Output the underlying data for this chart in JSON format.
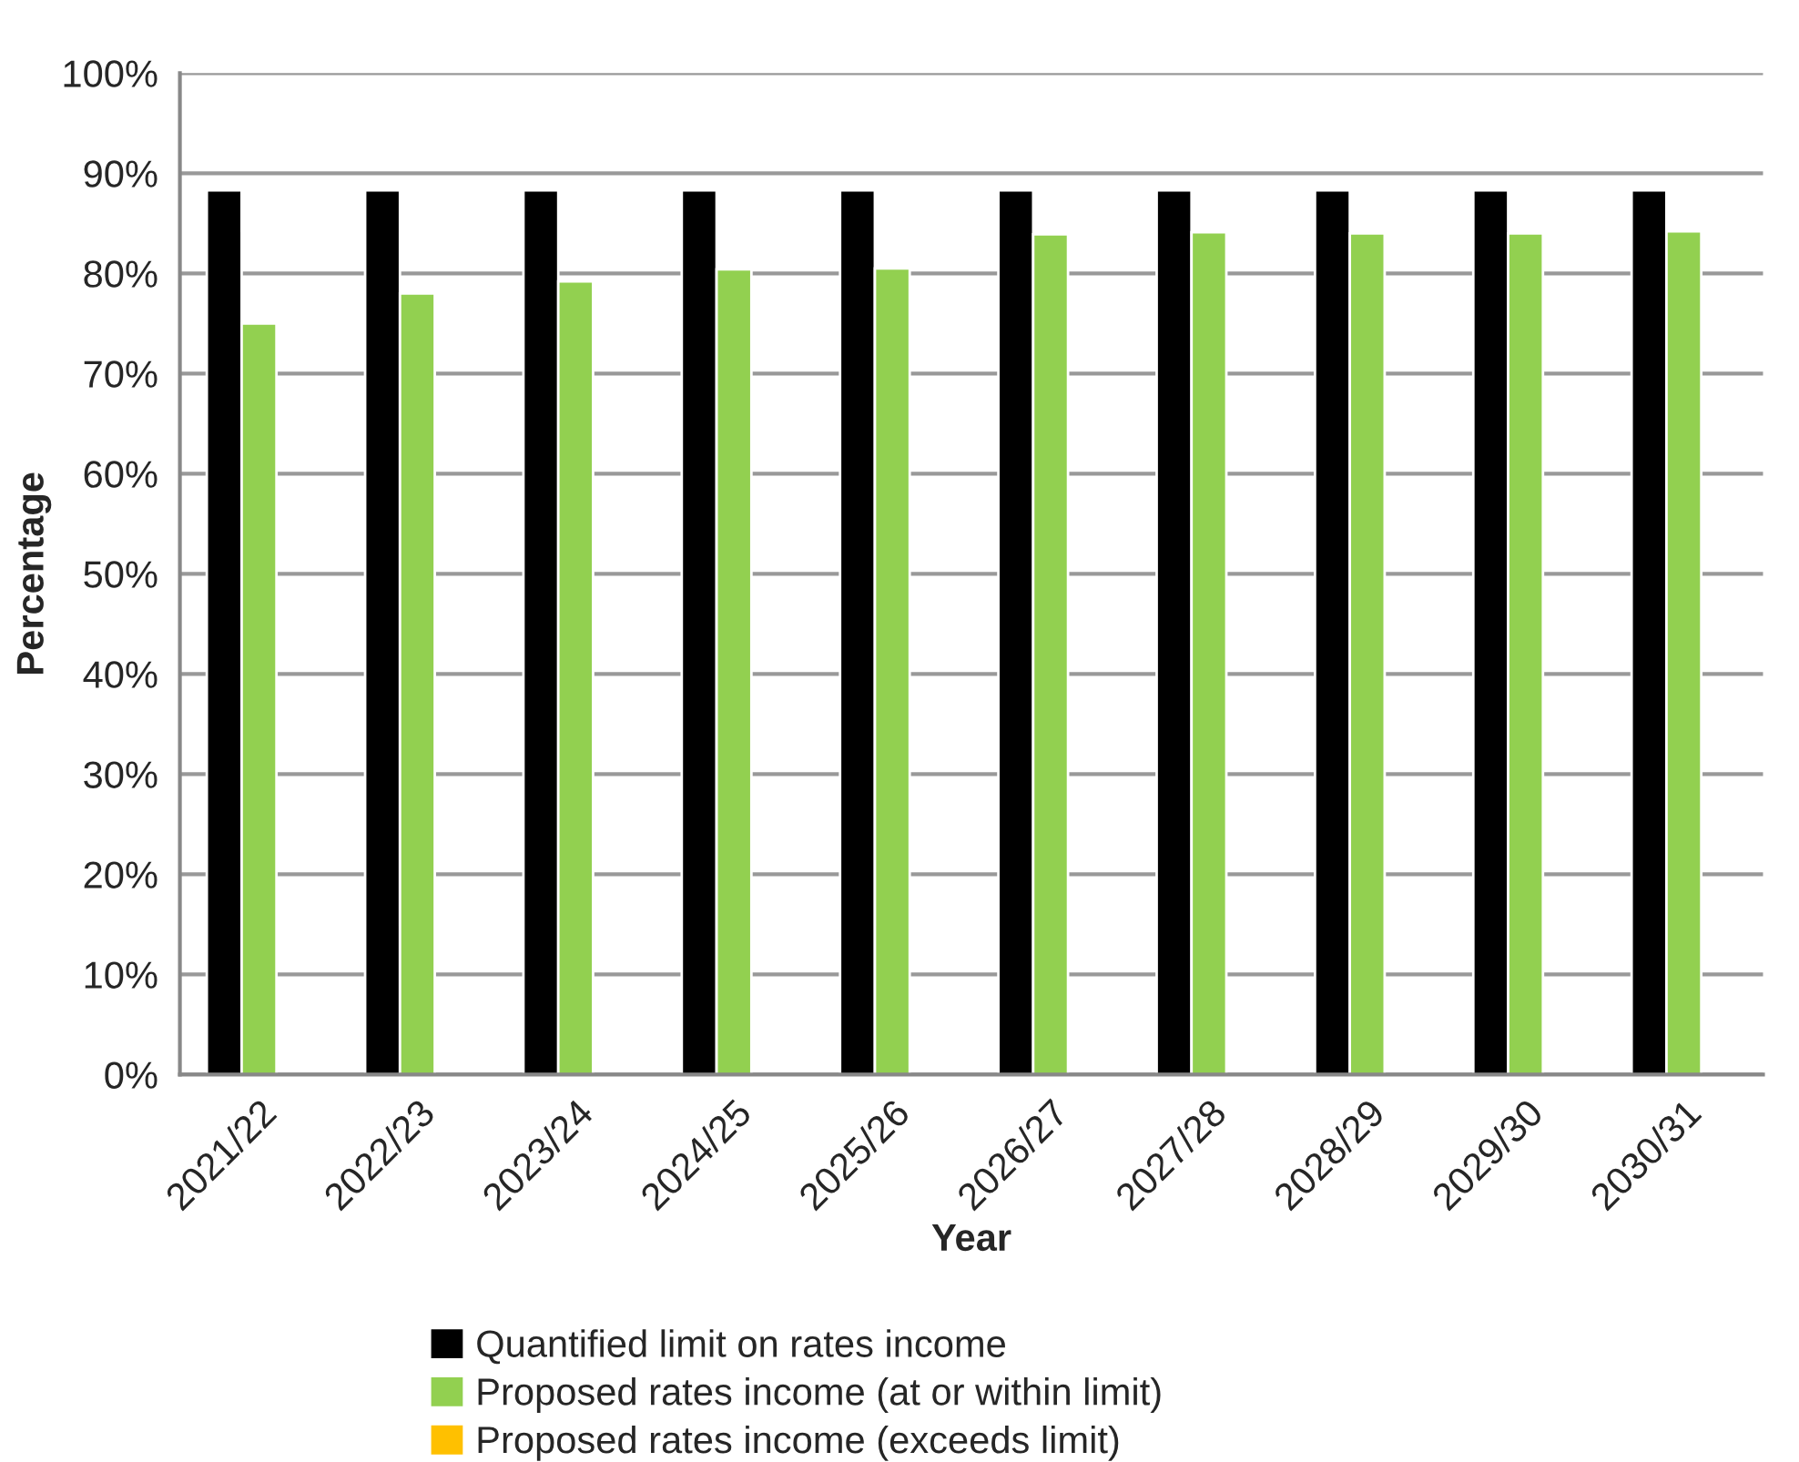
{
  "chart_data": {
    "type": "bar",
    "categories": [
      "2021/22",
      "2022/23",
      "2023/24",
      "2024/25",
      "2025/26",
      "2026/27",
      "2027/28",
      "2028/29",
      "2029/30",
      "2030/31"
    ],
    "series": [
      {
        "name": "Quantified limit on rates income",
        "color": "#000000",
        "values": [
          88.3,
          88.3,
          88.3,
          88.3,
          88.3,
          88.3,
          88.3,
          88.3,
          88.3,
          88.3
        ]
      },
      {
        "name": "Proposed rates income (at or within limit)",
        "color": "#92d050",
        "values": [
          75.0,
          78.0,
          79.2,
          80.4,
          80.5,
          83.9,
          84.1,
          84.0,
          84.0,
          84.2
        ]
      },
      {
        "name": "Proposed rates income (exceeds limit)",
        "color": "#ffc000",
        "values": [
          null,
          null,
          null,
          null,
          null,
          null,
          null,
          null,
          null,
          null
        ]
      }
    ],
    "xlabel": "Year",
    "ylabel": "Percentage",
    "ylim": [
      0,
      100
    ],
    "yticks": [
      {
        "value": 0,
        "label": "0%"
      },
      {
        "value": 10,
        "label": "10%"
      },
      {
        "value": 20,
        "label": "20%"
      },
      {
        "value": 30,
        "label": "30%"
      },
      {
        "value": 40,
        "label": "40%"
      },
      {
        "value": 50,
        "label": "50%"
      },
      {
        "value": 60,
        "label": "60%"
      },
      {
        "value": 70,
        "label": "70%"
      },
      {
        "value": 80,
        "label": "80%"
      },
      {
        "value": 90,
        "label": "90%"
      },
      {
        "value": 100,
        "label": "100%"
      }
    ],
    "grid": "y",
    "legend": "bottom"
  }
}
